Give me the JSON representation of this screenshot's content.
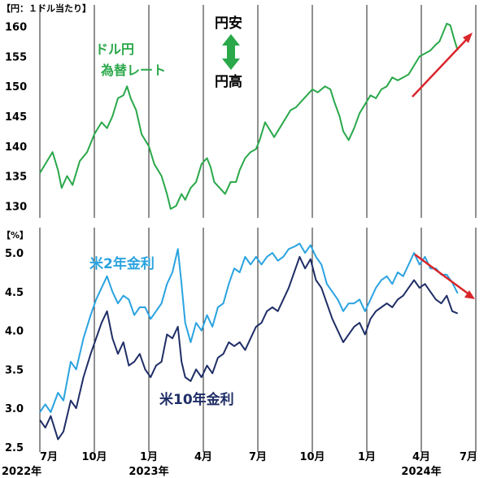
{
  "chart_data": [
    {
      "type": "line",
      "panel": "top",
      "unit_label": "【円：１ドル当たり】",
      "ylim": [
        128,
        162
      ],
      "yticks": [
        130,
        135,
        140,
        145,
        150,
        155,
        160
      ],
      "grid": {
        "vertical": true,
        "horizontal": false
      },
      "colors": {
        "line": "#2aa84a",
        "arrow": "#d9262b"
      },
      "annotations": {
        "series_label_line1": "ドル円",
        "series_label_line2": "為替レート",
        "yen_weak": "円安",
        "yen_strong": "円高"
      },
      "series": [
        {
          "color": "#2aa84a",
          "points": [
            [
              0,
              135.5
            ],
            [
              0.4,
              137.5
            ],
            [
              0.7,
              139
            ],
            [
              1,
              136
            ],
            [
              1.2,
              133
            ],
            [
              1.5,
              135
            ],
            [
              1.8,
              133.5
            ],
            [
              2.2,
              137.5
            ],
            [
              2.6,
              139
            ],
            [
              3,
              142
            ],
            [
              3.4,
              144
            ],
            [
              3.7,
              143
            ],
            [
              4,
              145
            ],
            [
              4.3,
              148
            ],
            [
              4.6,
              148.5
            ],
            [
              4.8,
              150
            ],
            [
              5,
              148
            ],
            [
              5.3,
              146
            ],
            [
              5.6,
              142
            ],
            [
              6,
              140
            ],
            [
              6.3,
              137
            ],
            [
              6.7,
              135
            ],
            [
              7,
              132
            ],
            [
              7.2,
              129.5
            ],
            [
              7.5,
              130
            ],
            [
              7.8,
              132
            ],
            [
              8,
              131
            ],
            [
              8.3,
              133
            ],
            [
              8.6,
              134
            ],
            [
              8.9,
              137
            ],
            [
              9.2,
              138
            ],
            [
              9.4,
              136.5
            ],
            [
              9.6,
              134
            ],
            [
              9.9,
              133
            ],
            [
              10.2,
              132
            ],
            [
              10.5,
              134
            ],
            [
              10.8,
              134
            ],
            [
              11,
              136
            ],
            [
              11.3,
              138
            ],
            [
              11.6,
              139
            ],
            [
              11.9,
              139.5
            ],
            [
              12.1,
              141
            ],
            [
              12.4,
              144
            ],
            [
              12.6,
              143
            ],
            [
              12.9,
              141.5
            ],
            [
              13.2,
              143
            ],
            [
              13.5,
              144.5
            ],
            [
              13.8,
              146
            ],
            [
              14.1,
              146.5
            ],
            [
              14.4,
              147.5
            ],
            [
              14.7,
              148.5
            ],
            [
              15,
              149.5
            ],
            [
              15.3,
              149
            ],
            [
              15.7,
              150
            ],
            [
              16,
              149.5
            ],
            [
              16.2,
              147.5
            ],
            [
              16.5,
              145
            ],
            [
              16.7,
              142.5
            ],
            [
              17,
              141
            ],
            [
              17.3,
              143
            ],
            [
              17.6,
              145.5
            ],
            [
              17.9,
              147
            ],
            [
              18.2,
              148.5
            ],
            [
              18.5,
              148
            ],
            [
              18.8,
              149.5
            ],
            [
              19.1,
              150
            ],
            [
              19.4,
              151.5
            ],
            [
              19.7,
              151
            ],
            [
              20,
              151.5
            ],
            [
              20.3,
              152
            ],
            [
              20.6,
              153.5
            ],
            [
              20.9,
              155
            ],
            [
              21.2,
              155.5
            ],
            [
              21.5,
              156
            ],
            [
              21.8,
              157
            ],
            [
              22,
              157.5
            ],
            [
              22.2,
              159
            ],
            [
              22.4,
              160.5
            ],
            [
              22.6,
              160.2
            ],
            [
              22.8,
              158
            ],
            [
              23,
              156
            ]
          ]
        }
      ]
    },
    {
      "type": "line",
      "panel": "bottom",
      "unit_label": "【%】",
      "ylim": [
        2.5,
        5.2
      ],
      "yticks": [
        2.5,
        3.0,
        3.5,
        4.0,
        4.5,
        5.0
      ],
      "xticks": [
        {
          "x": 0,
          "label": "7月",
          "year": "2022年"
        },
        {
          "x": 3,
          "label": "10月",
          "year": ""
        },
        {
          "x": 6,
          "label": "1月",
          "year": "2023年"
        },
        {
          "x": 9,
          "label": "4月",
          "year": ""
        },
        {
          "x": 12,
          "label": "7月",
          "year": ""
        },
        {
          "x": 15,
          "label": "10月",
          "year": ""
        },
        {
          "x": 18,
          "label": "1月",
          "year": ""
        },
        {
          "x": 21,
          "label": "4月",
          "year": "2024年"
        },
        {
          "x": 24,
          "label": "7月",
          "year": ""
        }
      ],
      "grid": {
        "vertical": true,
        "horizontal": false
      },
      "colors": {
        "arrow": "#d9262b"
      },
      "series": [
        {
          "name": "米2年金利",
          "color": "#2aa3e0",
          "points": [
            [
              0,
              2.95
            ],
            [
              0.3,
              3.05
            ],
            [
              0.6,
              2.95
            ],
            [
              1,
              3.2
            ],
            [
              1.3,
              3.1
            ],
            [
              1.7,
              3.6
            ],
            [
              2,
              3.5
            ],
            [
              2.4,
              3.9
            ],
            [
              2.8,
              4.2
            ],
            [
              3.1,
              4.4
            ],
            [
              3.4,
              4.55
            ],
            [
              3.7,
              4.7
            ],
            [
              4,
              4.5
            ],
            [
              4.3,
              4.35
            ],
            [
              4.6,
              4.45
            ],
            [
              4.9,
              4.4
            ],
            [
              5.2,
              4.2
            ],
            [
              5.5,
              4.3
            ],
            [
              5.8,
              4.3
            ],
            [
              6.1,
              4.15
            ],
            [
              6.4,
              4.25
            ],
            [
              6.7,
              4.35
            ],
            [
              7,
              4.6
            ],
            [
              7.3,
              4.75
            ],
            [
              7.6,
              5.05
            ],
            [
              7.8,
              4.6
            ],
            [
              8,
              4.1
            ],
            [
              8.3,
              3.85
            ],
            [
              8.6,
              4.1
            ],
            [
              8.9,
              4.0
            ],
            [
              9.2,
              4.2
            ],
            [
              9.5,
              4.05
            ],
            [
              9.8,
              4.3
            ],
            [
              10.1,
              4.35
            ],
            [
              10.4,
              4.6
            ],
            [
              10.7,
              4.8
            ],
            [
              11,
              4.75
            ],
            [
              11.3,
              4.95
            ],
            [
              11.6,
              4.85
            ],
            [
              11.9,
              4.95
            ],
            [
              12.2,
              4.85
            ],
            [
              12.5,
              4.95
            ],
            [
              12.8,
              5.0
            ],
            [
              13.1,
              4.9
            ],
            [
              13.4,
              4.95
            ],
            [
              13.7,
              5.05
            ],
            [
              14,
              5.08
            ],
            [
              14.3,
              5.12
            ],
            [
              14.6,
              5.0
            ],
            [
              14.9,
              5.1
            ],
            [
              15.2,
              4.95
            ],
            [
              15.5,
              4.85
            ],
            [
              15.8,
              4.6
            ],
            [
              16.1,
              4.5
            ],
            [
              16.4,
              4.4
            ],
            [
              16.7,
              4.25
            ],
            [
              17,
              4.35
            ],
            [
              17.3,
              4.35
            ],
            [
              17.6,
              4.4
            ],
            [
              17.9,
              4.25
            ],
            [
              18.2,
              4.4
            ],
            [
              18.5,
              4.55
            ],
            [
              18.8,
              4.65
            ],
            [
              19.1,
              4.7
            ],
            [
              19.4,
              4.6
            ],
            [
              19.7,
              4.75
            ],
            [
              20,
              4.7
            ],
            [
              20.3,
              4.85
            ],
            [
              20.6,
              5.0
            ],
            [
              20.9,
              4.85
            ],
            [
              21.2,
              4.95
            ],
            [
              21.5,
              4.8
            ],
            [
              21.8,
              4.8
            ],
            [
              22.1,
              4.72
            ],
            [
              22.4,
              4.72
            ],
            [
              22.7,
              4.62
            ],
            [
              23,
              4.48
            ]
          ]
        },
        {
          "name": "米10年金利",
          "color": "#1f2e66",
          "points": [
            [
              0,
              2.85
            ],
            [
              0.3,
              2.75
            ],
            [
              0.6,
              2.9
            ],
            [
              1,
              2.6
            ],
            [
              1.3,
              2.7
            ],
            [
              1.7,
              3.1
            ],
            [
              2,
              3.0
            ],
            [
              2.4,
              3.4
            ],
            [
              2.8,
              3.7
            ],
            [
              3.1,
              3.9
            ],
            [
              3.4,
              4.1
            ],
            [
              3.7,
              4.25
            ],
            [
              4,
              3.9
            ],
            [
              4.3,
              3.7
            ],
            [
              4.6,
              3.85
            ],
            [
              4.9,
              3.55
            ],
            [
              5.2,
              3.6
            ],
            [
              5.5,
              3.7
            ],
            [
              5.8,
              3.5
            ],
            [
              6.1,
              3.4
            ],
            [
              6.4,
              3.55
            ],
            [
              6.7,
              3.6
            ],
            [
              7,
              3.95
            ],
            [
              7.3,
              3.9
            ],
            [
              7.6,
              4.05
            ],
            [
              7.8,
              3.6
            ],
            [
              8,
              3.4
            ],
            [
              8.3,
              3.35
            ],
            [
              8.6,
              3.5
            ],
            [
              8.9,
              3.4
            ],
            [
              9.2,
              3.55
            ],
            [
              9.5,
              3.45
            ],
            [
              9.8,
              3.65
            ],
            [
              10.1,
              3.7
            ],
            [
              10.4,
              3.85
            ],
            [
              10.7,
              3.8
            ],
            [
              11,
              3.85
            ],
            [
              11.3,
              3.75
            ],
            [
              11.6,
              3.9
            ],
            [
              11.9,
              4.05
            ],
            [
              12.2,
              4.1
            ],
            [
              12.5,
              4.25
            ],
            [
              12.8,
              4.3
            ],
            [
              13.1,
              4.25
            ],
            [
              13.4,
              4.4
            ],
            [
              13.7,
              4.55
            ],
            [
              14,
              4.75
            ],
            [
              14.3,
              4.95
            ],
            [
              14.6,
              4.8
            ],
            [
              14.9,
              4.92
            ],
            [
              15.2,
              4.65
            ],
            [
              15.5,
              4.55
            ],
            [
              15.8,
              4.35
            ],
            [
              16.1,
              4.15
            ],
            [
              16.4,
              4.0
            ],
            [
              16.7,
              3.85
            ],
            [
              17,
              3.95
            ],
            [
              17.3,
              4.05
            ],
            [
              17.6,
              4.1
            ],
            [
              17.9,
              3.95
            ],
            [
              18.2,
              4.15
            ],
            [
              18.5,
              4.25
            ],
            [
              18.8,
              4.3
            ],
            [
              19.1,
              4.35
            ],
            [
              19.4,
              4.3
            ],
            [
              19.7,
              4.4
            ],
            [
              20,
              4.45
            ],
            [
              20.3,
              4.55
            ],
            [
              20.6,
              4.65
            ],
            [
              20.9,
              4.55
            ],
            [
              21.2,
              4.6
            ],
            [
              21.5,
              4.5
            ],
            [
              21.8,
              4.4
            ],
            [
              22.1,
              4.35
            ],
            [
              22.4,
              4.45
            ],
            [
              22.7,
              4.25
            ],
            [
              23,
              4.22
            ]
          ]
        }
      ]
    }
  ]
}
